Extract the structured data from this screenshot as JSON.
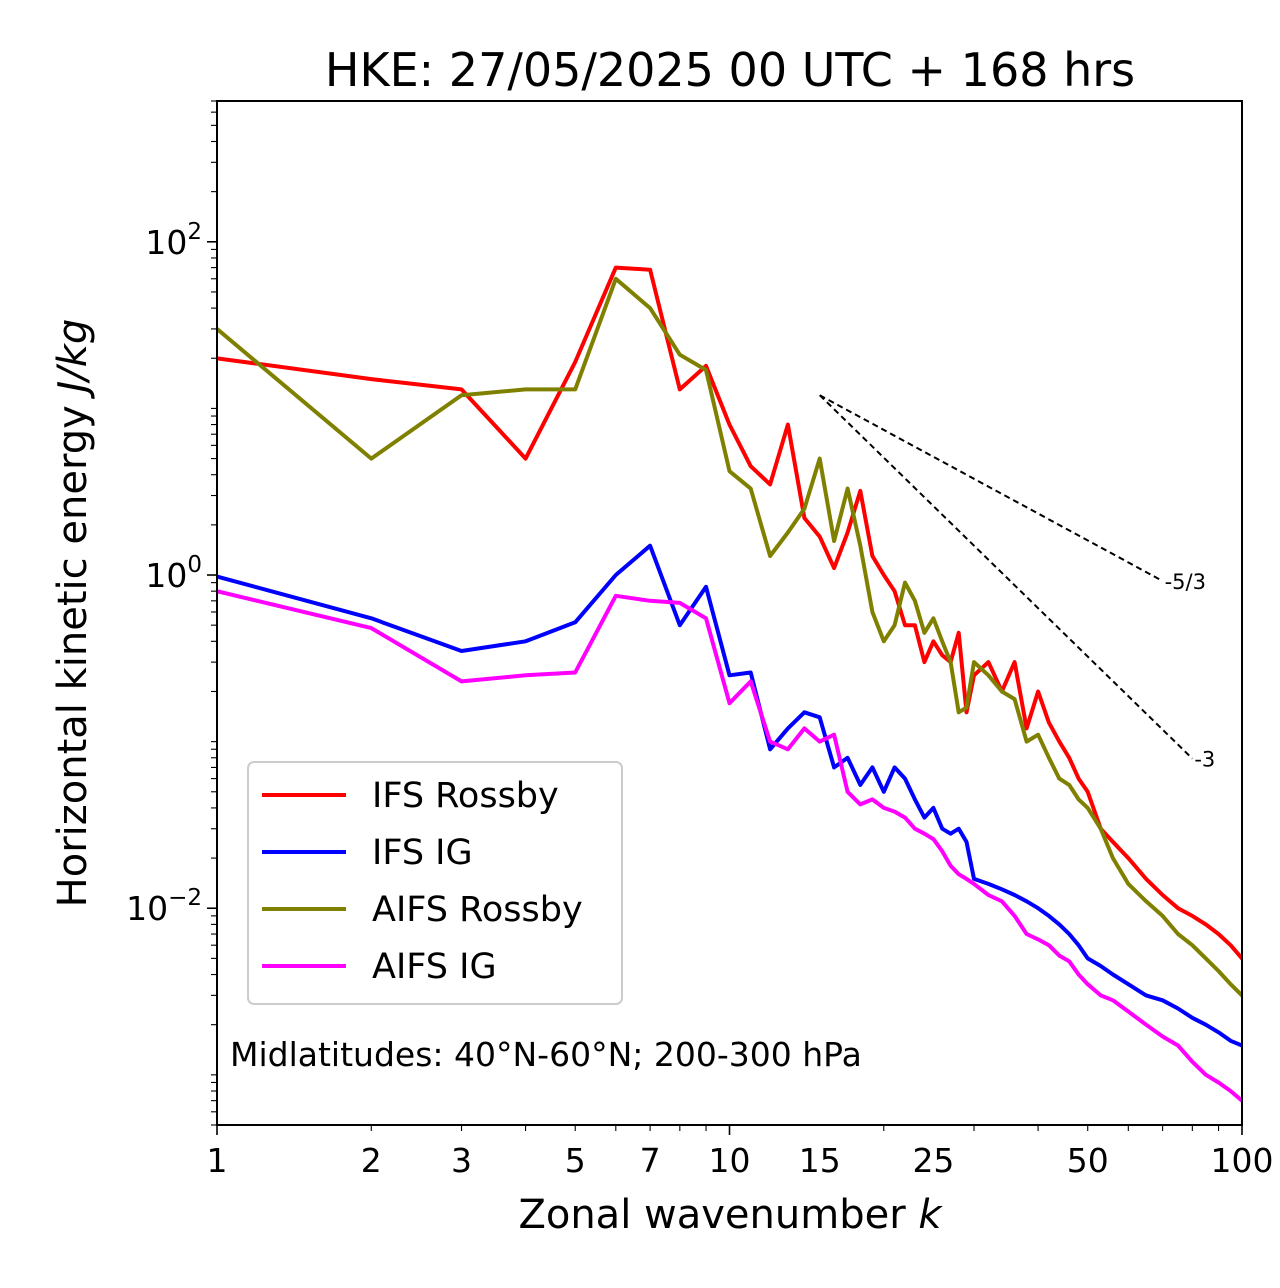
{
  "chart_data": {
    "type": "line",
    "title": "HKE: 27/05/2025 00 UTC + 168 hrs",
    "xlabel": "Zonal wavenumber",
    "xlabel_symbol": "k",
    "ylabel": "Horizontal kinetic energy",
    "ylabel_unit": "J/kg",
    "xscale": "log",
    "yscale": "log",
    "xlim": [
      1,
      100
    ],
    "ylim": [
      0.0005,
      700
    ],
    "x_ticks": [
      1,
      2,
      3,
      5,
      7,
      10,
      15,
      25,
      50,
      100
    ],
    "x_tick_labels": [
      "1",
      "2",
      "3",
      "5",
      "7",
      "10",
      "15",
      "25",
      "50",
      "100"
    ],
    "y_ticks": [
      {
        "value": 0.01,
        "base": "10",
        "exp": "−2"
      },
      {
        "value": 1,
        "base": "10",
        "exp": "0"
      },
      {
        "value": 100,
        "base": "10",
        "exp": "2"
      }
    ],
    "legend": {
      "placement": "lower-left"
    },
    "annotation": "Midlatitudes: 40°N-60°N; 200-300 hPa",
    "reference_lines": [
      {
        "label": "-5/3",
        "slope": -1.6667,
        "x_start": 15,
        "y_start": 12.0,
        "x_end": 70
      },
      {
        "label": "-3",
        "slope": -3,
        "x_start": 15,
        "y_start": 12.0,
        "x_end": 80
      }
    ],
    "series": [
      {
        "name": "IFS Rossby",
        "color": "#ff0000",
        "x": [
          1,
          2,
          3,
          4,
          5,
          6,
          7,
          8,
          9,
          10,
          11,
          12,
          13,
          14,
          15,
          16,
          17,
          18,
          19,
          20,
          21,
          22,
          23,
          24,
          25,
          26,
          27,
          28,
          29,
          30,
          32,
          34,
          36,
          38,
          40,
          42,
          44,
          46,
          48,
          50,
          53,
          56,
          60,
          65,
          70,
          75,
          80,
          85,
          90,
          95,
          100
        ],
        "y": [
          20,
          15,
          13,
          5,
          19,
          70,
          68,
          13,
          18,
          8,
          4.5,
          3.5,
          8,
          2.2,
          1.7,
          1.1,
          1.8,
          3.2,
          1.3,
          1.0,
          0.8,
          0.5,
          0.5,
          0.3,
          0.4,
          0.33,
          0.3,
          0.45,
          0.15,
          0.25,
          0.3,
          0.2,
          0.3,
          0.12,
          0.2,
          0.13,
          0.1,
          0.08,
          0.06,
          0.05,
          0.03,
          0.025,
          0.02,
          0.015,
          0.012,
          0.01,
          0.009,
          0.008,
          0.007,
          0.006,
          0.005
        ]
      },
      {
        "name": "IFS IG",
        "color": "#0000ff",
        "x": [
          1,
          2,
          3,
          4,
          5,
          6,
          7,
          8,
          9,
          10,
          11,
          12,
          13,
          14,
          15,
          16,
          17,
          18,
          19,
          20,
          21,
          22,
          23,
          24,
          25,
          26,
          27,
          28,
          29,
          30,
          32,
          34,
          36,
          38,
          40,
          42,
          44,
          46,
          48,
          50,
          53,
          56,
          60,
          65,
          70,
          75,
          80,
          85,
          90,
          95,
          100
        ],
        "y": [
          0.98,
          0.55,
          0.35,
          0.4,
          0.52,
          1.0,
          1.5,
          0.5,
          0.85,
          0.25,
          0.26,
          0.09,
          0.12,
          0.15,
          0.14,
          0.07,
          0.08,
          0.055,
          0.07,
          0.05,
          0.07,
          0.06,
          0.045,
          0.035,
          0.04,
          0.03,
          0.028,
          0.03,
          0.025,
          0.015,
          0.014,
          0.013,
          0.012,
          0.011,
          0.01,
          0.009,
          0.008,
          0.007,
          0.006,
          0.005,
          0.0045,
          0.004,
          0.0035,
          0.003,
          0.0028,
          0.0025,
          0.0022,
          0.002,
          0.0018,
          0.0016,
          0.0015
        ]
      },
      {
        "name": "AIFS Rossby",
        "color": "#808000",
        "x": [
          1,
          2,
          3,
          4,
          5,
          6,
          7,
          8,
          9,
          10,
          11,
          12,
          13,
          14,
          15,
          16,
          17,
          18,
          19,
          20,
          21,
          22,
          23,
          24,
          25,
          26,
          27,
          28,
          29,
          30,
          32,
          34,
          36,
          38,
          40,
          42,
          44,
          46,
          48,
          50,
          53,
          56,
          60,
          65,
          70,
          75,
          80,
          85,
          90,
          95,
          100
        ],
        "y": [
          30,
          5,
          12,
          13,
          13,
          60,
          40,
          21,
          17,
          4.2,
          3.3,
          1.3,
          1.8,
          2.5,
          5,
          1.6,
          3.3,
          1.5,
          0.6,
          0.4,
          0.5,
          0.9,
          0.7,
          0.45,
          0.55,
          0.4,
          0.3,
          0.15,
          0.16,
          0.3,
          0.25,
          0.2,
          0.18,
          0.1,
          0.11,
          0.08,
          0.06,
          0.055,
          0.045,
          0.04,
          0.03,
          0.02,
          0.014,
          0.011,
          0.009,
          0.007,
          0.006,
          0.005,
          0.0042,
          0.0035,
          0.003
        ]
      },
      {
        "name": "AIFS IG",
        "color": "#ff00ff",
        "x": [
          1,
          2,
          3,
          4,
          5,
          6,
          7,
          8,
          9,
          10,
          11,
          12,
          13,
          14,
          15,
          16,
          17,
          18,
          19,
          20,
          21,
          22,
          23,
          24,
          25,
          26,
          27,
          28,
          29,
          30,
          32,
          34,
          36,
          38,
          40,
          42,
          44,
          46,
          48,
          50,
          53,
          56,
          60,
          65,
          70,
          75,
          80,
          85,
          90,
          95,
          100
        ],
        "y": [
          0.8,
          0.48,
          0.23,
          0.25,
          0.26,
          0.75,
          0.7,
          0.68,
          0.55,
          0.17,
          0.23,
          0.1,
          0.09,
          0.12,
          0.1,
          0.11,
          0.05,
          0.042,
          0.045,
          0.04,
          0.038,
          0.035,
          0.03,
          0.028,
          0.026,
          0.022,
          0.018,
          0.016,
          0.015,
          0.014,
          0.012,
          0.011,
          0.009,
          0.007,
          0.0065,
          0.006,
          0.0052,
          0.0048,
          0.004,
          0.0035,
          0.003,
          0.0028,
          0.0024,
          0.002,
          0.0017,
          0.0015,
          0.0012,
          0.001,
          0.0009,
          0.0008,
          0.0007
        ]
      }
    ]
  }
}
